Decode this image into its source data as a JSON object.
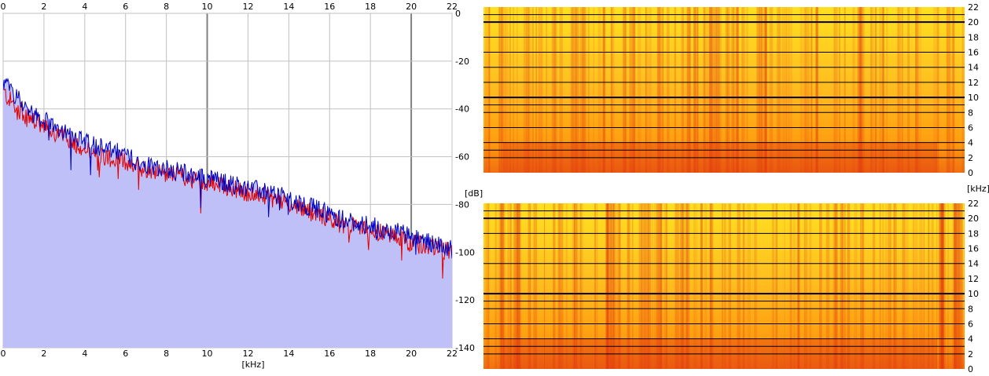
{
  "chart_data": [
    {
      "type": "area",
      "panel": "spectrum",
      "xlabel": "[kHz]",
      "ylabel": "[dB]",
      "x_ticks": [
        0,
        2,
        4,
        6,
        8,
        10,
        12,
        14,
        16,
        18,
        20,
        22
      ],
      "y_ticks": [
        0,
        -20,
        -40,
        -60,
        -80,
        -100,
        -120,
        -140
      ],
      "xlim": [
        0,
        22
      ],
      "ylim": [
        -140,
        0
      ],
      "grid": true,
      "colors": {
        "fill": "#c0c0f8",
        "channel_1": "#e00000",
        "channel_2": "#0000c0",
        "grid": "#c0c0c0",
        "grid_major": "#808080"
      },
      "series": [
        {
          "color": "#e00000",
          "x": [
            0,
            0.5,
            1,
            1.5,
            2,
            2.5,
            3,
            3.5,
            4,
            4.5,
            5,
            5.5,
            6,
            6.5,
            7,
            7.5,
            8,
            8.5,
            9,
            9.5,
            10,
            10.5,
            11,
            11.5,
            12,
            12.5,
            13,
            13.5,
            14,
            14.5,
            15,
            15.5,
            16,
            16.5,
            17,
            17.5,
            18,
            18.5,
            19,
            19.5,
            20,
            20.5,
            21,
            21.5,
            22
          ],
          "values": [
            -33,
            -38,
            -42,
            -45,
            -48,
            -50,
            -52,
            -54,
            -57,
            -58,
            -60,
            -61,
            -62,
            -64,
            -65,
            -66,
            -67,
            -68,
            -69,
            -70,
            -71,
            -72,
            -73,
            -74,
            -75,
            -76,
            -77,
            -78,
            -80,
            -81,
            -83,
            -84,
            -86,
            -88,
            -89,
            -90,
            -91,
            -92,
            -93,
            -94,
            -96,
            -97,
            -98,
            -99,
            -100
          ]
        },
        {
          "color": "#0000c0",
          "x": [
            0,
            0.5,
            1,
            1.5,
            2,
            2.5,
            3,
            3.5,
            4,
            4.5,
            5,
            5.5,
            6,
            6.5,
            7,
            7.5,
            8,
            8.5,
            9,
            9.5,
            10,
            10.5,
            11,
            11.5,
            12,
            12.5,
            13,
            13.5,
            14,
            14.5,
            15,
            15.5,
            16,
            16.5,
            17,
            17.5,
            18,
            18.5,
            19,
            19.5,
            20,
            20.5,
            21,
            21.5,
            22
          ],
          "values": [
            -29,
            -33,
            -38,
            -42,
            -45,
            -47,
            -49,
            -51,
            -54,
            -55,
            -57,
            -58,
            -59,
            -62,
            -63,
            -64,
            -65,
            -66,
            -67,
            -68,
            -69,
            -70,
            -71,
            -72,
            -73,
            -74,
            -75,
            -76,
            -78,
            -79,
            -81,
            -82,
            -84,
            -86,
            -87,
            -88,
            -89,
            -90,
            -91,
            -92,
            -94,
            -95,
            -96,
            -97,
            -99
          ]
        }
      ]
    },
    {
      "type": "heatmap",
      "panel": "spectrogram-top",
      "ylabel": "[kHz]",
      "y_ticks": [
        0,
        2,
        4,
        6,
        8,
        10,
        12,
        14,
        16,
        18,
        20,
        22
      ],
      "ylim": [
        0,
        22
      ],
      "major_lines_khz": [
        10,
        20
      ],
      "colors": {
        "low": "#ffe020",
        "mid": "#ffa000",
        "high": "#e03010"
      }
    },
    {
      "type": "heatmap",
      "panel": "spectrogram-bottom",
      "y_ticks": [
        0,
        2,
        4,
        6,
        8,
        10,
        12,
        14,
        16,
        18,
        20,
        22
      ],
      "ylim": [
        0,
        22
      ],
      "major_lines_khz": [
        10,
        20
      ],
      "colors": {
        "low": "#ffe020",
        "mid": "#ffa000",
        "high": "#e03010"
      }
    }
  ]
}
